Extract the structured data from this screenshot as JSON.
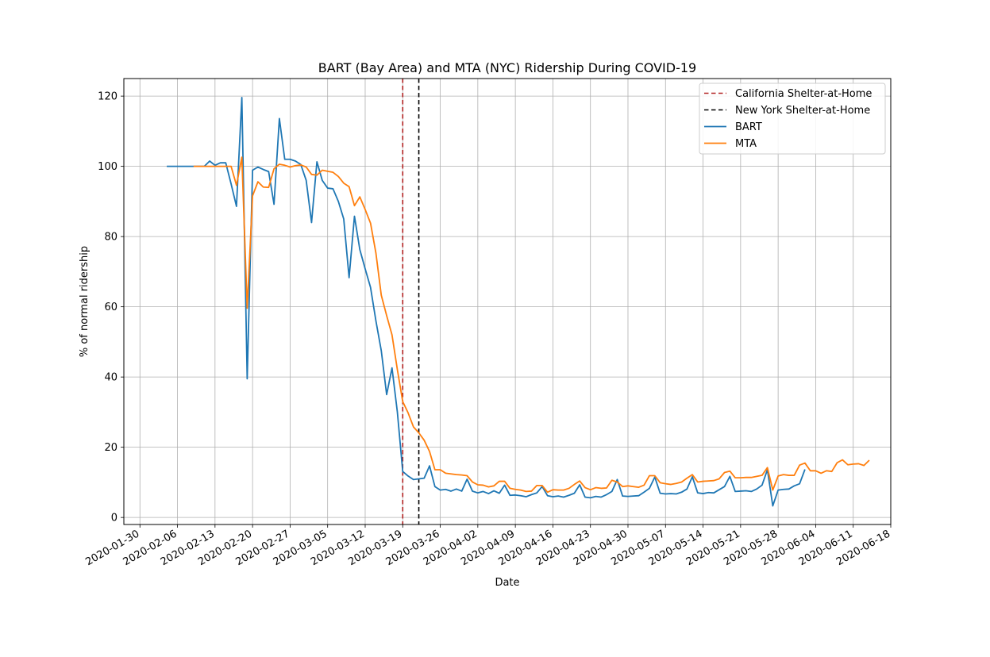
{
  "chart_data": {
    "type": "line",
    "title": "BART (Bay Area) and MTA (NYC) Ridership During COVID-19",
    "xlabel": "Date",
    "ylabel": "% of normal ridership",
    "ylim": [
      -2,
      125
    ],
    "xlim": [
      "2020-01-27",
      "2020-06-18"
    ],
    "grid": true,
    "legend_position": "upper right",
    "xticks": [
      "2020-01-30",
      "2020-02-06",
      "2020-02-13",
      "2020-02-20",
      "2020-02-27",
      "2020-03-05",
      "2020-03-12",
      "2020-03-19",
      "2020-03-26",
      "2020-04-02",
      "2020-04-09",
      "2020-04-16",
      "2020-04-23",
      "2020-04-30",
      "2020-05-07",
      "2020-05-14",
      "2020-05-21",
      "2020-05-28",
      "2020-06-04",
      "2020-06-11",
      "2020-06-18"
    ],
    "yticks": [
      0,
      20,
      40,
      60,
      80,
      100,
      120
    ],
    "vlines": [
      {
        "label": "California Shelter-at-Home",
        "date": "2020-03-19",
        "color": "#b22222",
        "style": "dashed"
      },
      {
        "label": "New York Shelter-at-Home",
        "date": "2020-03-22",
        "color": "#000000",
        "style": "dashed"
      }
    ],
    "series": [
      {
        "name": "BART",
        "color": "#1f77b4",
        "start_date": "2020-02-04",
        "values": [
          100,
          100,
          100,
          100,
          100,
          100,
          100,
          100,
          101.5,
          100.3,
          101,
          101,
          95,
          88.6,
          119.6,
          39.5,
          98.9,
          99.8,
          99.1,
          98.5,
          89.2,
          113.6,
          102,
          102,
          101.5,
          100.5,
          96,
          84,
          101.3,
          96,
          93.8,
          93.6,
          90,
          85,
          68.3,
          85.8,
          76.3,
          70.8,
          65.5,
          56,
          47.5,
          35,
          42.6,
          30,
          13.1,
          11.8,
          10.8,
          11,
          11.2,
          14.7,
          8.8,
          7.8,
          8,
          7.5,
          8.1,
          7.5,
          10.9,
          7.5,
          7,
          7.4,
          6.8,
          7.6,
          6.9,
          9.2,
          6.3,
          6.4,
          6.2,
          5.9,
          6.5,
          7,
          8.8,
          6.2,
          5.9,
          6.1,
          5.8,
          6.3,
          6.9,
          9.3,
          5.8,
          5.6,
          6,
          5.8,
          6.5,
          7.4,
          10.8,
          6.1,
          6,
          6.1,
          6.2,
          7.2,
          8.3,
          11.5,
          6.9,
          6.7,
          6.8,
          6.7,
          7.2,
          8.1,
          11.6,
          7,
          6.8,
          7.1,
          7,
          7.9,
          8.8,
          11.7,
          7.4,
          7.5,
          7.6,
          7.4,
          8.1,
          9.2,
          13.6,
          3.3,
          7.8,
          8,
          8.1,
          9,
          9.6,
          13.7
        ]
      },
      {
        "name": "MTA",
        "color": "#ff7f0e",
        "start_date": "2020-02-09",
        "values": [
          100,
          100,
          100,
          100,
          100,
          100,
          100,
          100,
          94.6,
          102.6,
          59.6,
          91.6,
          95.6,
          94.1,
          94,
          99.3,
          100.6,
          100.3,
          99.8,
          100.2,
          100.4,
          99.8,
          97.7,
          97.5,
          98.9,
          98.6,
          98.3,
          97.1,
          95.2,
          94.2,
          88.8,
          91.3,
          87.7,
          83.8,
          75.3,
          63.3,
          57.5,
          52,
          42.1,
          33,
          29.8,
          25.8,
          24.1,
          22,
          18.8,
          13.6,
          13.6,
          12.6,
          12.4,
          12.2,
          12.1,
          11.9,
          10.1,
          9.3,
          9.2,
          8.7,
          9,
          10.3,
          10.3,
          8.3,
          8,
          7.8,
          7.4,
          7.5,
          9.1,
          9.1,
          7.2,
          7.9,
          7.8,
          7.8,
          8.3,
          9.4,
          10.4,
          8.5,
          7.9,
          8.5,
          8.3,
          8.4,
          10.6,
          10.1,
          8.8,
          9,
          8.8,
          8.6,
          9.2,
          11.9,
          11.9,
          9.9,
          9.6,
          9.4,
          9.7,
          10.1,
          11.2,
          12.2,
          10.1,
          10.3,
          10.4,
          10.5,
          11,
          12.8,
          13.2,
          11.3,
          11.3,
          11.4,
          11.4,
          11.7,
          12,
          14.2,
          7.8,
          11.8,
          12.2,
          12,
          12,
          14.9,
          15.5,
          13.3,
          13.3,
          12.6,
          13.3,
          13.1,
          15.6,
          16.4,
          15,
          15.2,
          15.3,
          14.8,
          16.3
        ]
      }
    ]
  }
}
